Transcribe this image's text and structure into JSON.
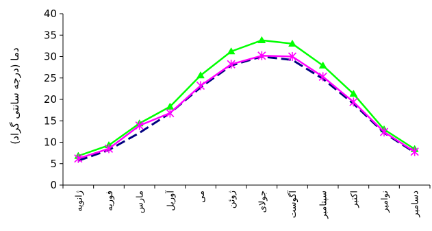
{
  "chart_data": {
    "type": "line",
    "title": "",
    "xlabel": "",
    "ylabel": "دما (درجه سانتی گراد)",
    "ylim": [
      0,
      40
    ],
    "yticks": [
      0,
      5,
      10,
      15,
      20,
      25,
      30,
      35,
      40
    ],
    "categories": [
      "ژانویه",
      "فوریه",
      "مارس",
      "آوریل",
      "می",
      "ژوئن",
      "جولای",
      "آگوست",
      "سپتامبر",
      "اکتبر",
      "نوامبر",
      "دسامبر"
    ],
    "grid": false,
    "legend": "none",
    "series": [
      {
        "color": "#00ff00",
        "marker": "triangle",
        "dash": "solid",
        "values": [
          6.8,
          9.3,
          14.4,
          18.3,
          25.6,
          31.2,
          33.8,
          33.0,
          27.9,
          21.3,
          13.0,
          8.4
        ]
      },
      {
        "color": "#000080",
        "marker": "none",
        "dash": "dashed",
        "values": [
          5.7,
          8.2,
          12.2,
          16.8,
          22.8,
          27.9,
          30.0,
          29.2,
          24.8,
          19.0,
          12.2,
          7.6
        ]
      },
      {
        "color": "#ff00ff",
        "marker": "asterisk",
        "dash": "solid",
        "values": [
          6.2,
          8.5,
          13.9,
          16.8,
          23.2,
          28.2,
          30.2,
          30.0,
          25.3,
          19.4,
          12.4,
          7.8
        ]
      }
    ]
  }
}
